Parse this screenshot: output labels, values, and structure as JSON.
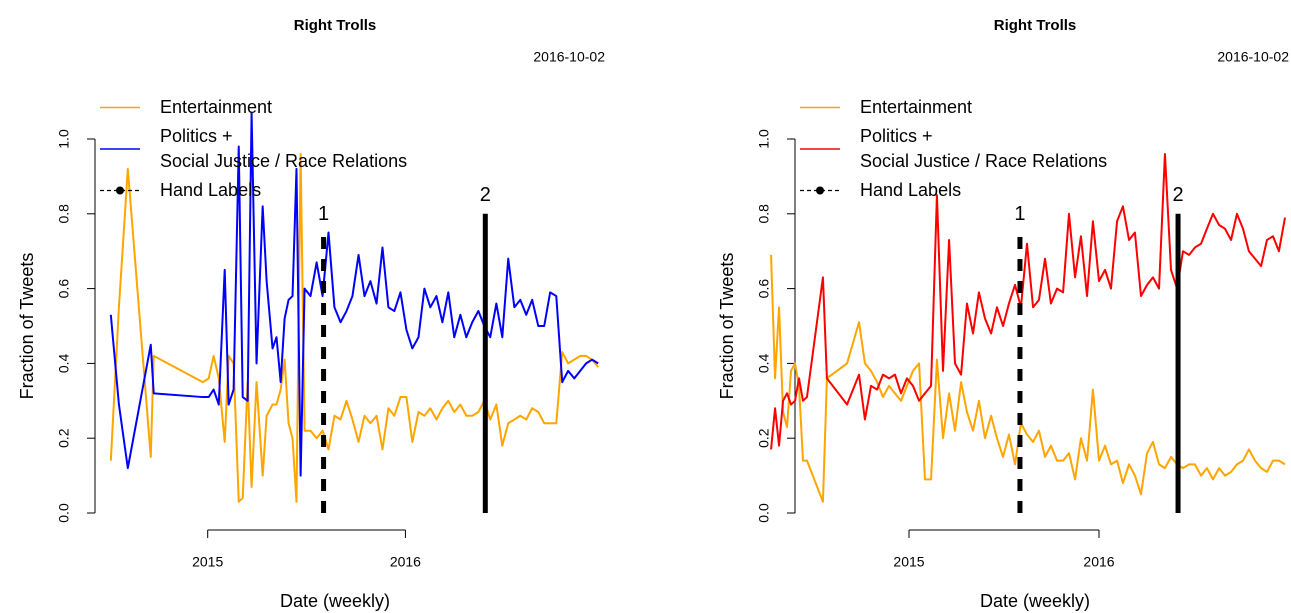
{
  "chart_data": [
    {
      "type": "line",
      "title": "Right Trolls",
      "subtitle": "2016-10-02",
      "xlabel": "Date (weekly)",
      "ylabel": "Fraction of Tweets",
      "xlim": [
        2014.43,
        2017.06
      ],
      "xticks": [
        2015,
        2016
      ],
      "ylim": [
        0,
        1
      ],
      "yticks": [
        {
          "value": 0,
          "label": "0.0"
        },
        0.2,
        0.4,
        0.6,
        0.8,
        {
          "value": 1,
          "label": "1.0"
        }
      ],
      "legend_position": "topleft",
      "annotation_legend": "Hand Labels",
      "x": [
        2014.51,
        2014.551,
        2014.596,
        2014.712,
        2014.727,
        2014.975,
        2015.005,
        2015.03,
        2015.056,
        2015.086,
        2015.106,
        2015.131,
        2015.157,
        2015.177,
        2015.202,
        2015.222,
        2015.247,
        2015.278,
        2015.298,
        2015.328,
        2015.348,
        2015.369,
        2015.389,
        2015.409,
        2015.429,
        2015.449,
        2015.47,
        2015.49,
        2015.52,
        2015.551,
        2015.581,
        2015.611,
        2015.641,
        2015.672,
        2015.702,
        2015.732,
        2015.763,
        2015.793,
        2015.823,
        2015.854,
        2015.884,
        2015.914,
        2015.944,
        2015.975,
        2016.005,
        2016.035,
        2016.066,
        2016.096,
        2016.126,
        2016.157,
        2016.187,
        2016.217,
        2016.247,
        2016.278,
        2016.308,
        2016.338,
        2016.369,
        2016.399,
        2016.429,
        2016.46,
        2016.49,
        2016.52,
        2016.551,
        2016.581,
        2016.611,
        2016.641,
        2016.672,
        2016.702,
        2016.732,
        2016.763,
        2016.793,
        2016.823,
        2016.854,
        2016.884,
        2016.914,
        2016.944,
        2016.975
      ],
      "series": [
        {
          "name": "Entertainment",
          "color": "#FFA500",
          "values": [
            0.14,
            0.55,
            0.92,
            0.15,
            0.42,
            0.35,
            0.36,
            0.42,
            0.36,
            0.19,
            0.42,
            0.4,
            0.03,
            0.04,
            0.35,
            0.07,
            0.35,
            0.1,
            0.26,
            0.29,
            0.29,
            0.33,
            0.41,
            0.24,
            0.2,
            0.03,
            0.96,
            0.22,
            0.22,
            0.2,
            0.22,
            0.17,
            0.26,
            0.25,
            0.3,
            0.25,
            0.19,
            0.26,
            0.24,
            0.26,
            0.17,
            0.28,
            0.26,
            0.31,
            0.31,
            0.19,
            0.27,
            0.26,
            0.28,
            0.25,
            0.28,
            0.3,
            0.27,
            0.29,
            0.26,
            0.26,
            0.27,
            0.3,
            0.25,
            0.29,
            0.18,
            0.24,
            0.25,
            0.26,
            0.25,
            0.28,
            0.27,
            0.24,
            0.24,
            0.24,
            0.43,
            0.4,
            0.41,
            0.42,
            0.42,
            0.41,
            0.39
          ]
        },
        {
          "name": "Politics +\nSocial Justice / Race Relations",
          "color": "#0000FF",
          "values": [
            0.53,
            0.29,
            0.12,
            0.45,
            0.32,
            0.31,
            0.31,
            0.33,
            0.29,
            0.65,
            0.29,
            0.33,
            0.98,
            0.31,
            0.3,
            1.07,
            0.4,
            0.82,
            0.62,
            0.44,
            0.47,
            0.35,
            0.52,
            0.57,
            0.58,
            0.92,
            0.1,
            0.6,
            0.58,
            0.67,
            0.58,
            0.75,
            0.55,
            0.51,
            0.54,
            0.58,
            0.69,
            0.58,
            0.62,
            0.56,
            0.71,
            0.55,
            0.54,
            0.59,
            0.49,
            0.44,
            0.47,
            0.6,
            0.55,
            0.58,
            0.51,
            0.59,
            0.47,
            0.53,
            0.47,
            0.51,
            0.54,
            0.5,
            0.47,
            0.56,
            0.47,
            0.68,
            0.55,
            0.57,
            0.53,
            0.57,
            0.5,
            0.5,
            0.59,
            0.58,
            0.35,
            0.38,
            0.36,
            0.38,
            0.4,
            0.41,
            0.4
          ]
        }
      ],
      "annotations": [
        {
          "label": "1",
          "x": 2015.586,
          "y": 0.75,
          "style": "dashed"
        },
        {
          "label": "2",
          "x": 2016.404,
          "y": 0.8,
          "style": "solid"
        }
      ]
    },
    {
      "type": "line",
      "title": "Right Trolls",
      "subtitle": "2016-10-02",
      "xlabel": "Date (weekly)",
      "ylabel": "Fraction of Tweets",
      "xlim": [
        2014.4,
        2017.0
      ],
      "xticks": [
        2015,
        2016
      ],
      "ylim": [
        0,
        1
      ],
      "yticks": [
        {
          "value": 0,
          "label": "0.0"
        },
        0.2,
        0.4,
        0.6,
        0.8,
        {
          "value": 1,
          "label": "1.0"
        }
      ],
      "legend_position": "topleft",
      "annotation_legend": "Hand Labels",
      "x": [
        2014.274,
        2014.295,
        2014.316,
        2014.337,
        2014.358,
        2014.379,
        2014.4,
        2014.421,
        2014.442,
        2014.463,
        2014.547,
        2014.568,
        2014.674,
        2014.737,
        2014.768,
        2014.8,
        2014.832,
        2014.863,
        2014.895,
        2014.926,
        2014.958,
        2014.989,
        2015.021,
        2015.053,
        2015.084,
        2015.116,
        2015.147,
        2015.179,
        2015.211,
        2015.242,
        2015.274,
        2015.305,
        2015.337,
        2015.368,
        2015.4,
        2015.432,
        2015.463,
        2015.495,
        2015.526,
        2015.558,
        2015.589,
        2015.621,
        2015.653,
        2015.684,
        2015.716,
        2015.747,
        2015.779,
        2015.811,
        2015.842,
        2015.874,
        2015.905,
        2015.937,
        2015.968,
        2016.0,
        2016.032,
        2016.063,
        2016.095,
        2016.126,
        2016.158,
        2016.189,
        2016.221,
        2016.253,
        2016.284,
        2016.316,
        2016.347,
        2016.379,
        2016.411,
        2016.442,
        2016.474,
        2016.505,
        2016.537,
        2016.568,
        2016.6,
        2016.632,
        2016.663,
        2016.695,
        2016.726,
        2016.758,
        2016.789,
        2016.821,
        2016.853,
        2016.884,
        2016.916,
        2016.947,
        2016.979
      ],
      "series": [
        {
          "name": "Entertainment",
          "color": "#FFA500",
          "values": [
            0.69,
            0.36,
            0.55,
            0.27,
            0.23,
            0.38,
            0.4,
            0.34,
            0.14,
            0.14,
            0.03,
            0.36,
            0.4,
            0.51,
            0.4,
            0.38,
            0.35,
            0.31,
            0.34,
            0.32,
            0.3,
            0.34,
            0.38,
            0.4,
            0.09,
            0.09,
            0.41,
            0.2,
            0.32,
            0.22,
            0.35,
            0.27,
            0.22,
            0.3,
            0.2,
            0.26,
            0.2,
            0.15,
            0.21,
            0.13,
            0.24,
            0.21,
            0.19,
            0.22,
            0.15,
            0.18,
            0.14,
            0.14,
            0.16,
            0.09,
            0.2,
            0.14,
            0.33,
            0.14,
            0.18,
            0.13,
            0.14,
            0.08,
            0.13,
            0.1,
            0.05,
            0.16,
            0.19,
            0.13,
            0.12,
            0.15,
            0.13,
            0.12,
            0.13,
            0.13,
            0.1,
            0.12,
            0.09,
            0.12,
            0.1,
            0.11,
            0.13,
            0.14,
            0.17,
            0.14,
            0.12,
            0.11,
            0.14,
            0.14,
            0.13
          ]
        },
        {
          "name": "Politics +\nSocial Justice / Race Relations",
          "color": "#FF0000",
          "values": [
            0.17,
            0.28,
            0.18,
            0.3,
            0.32,
            0.29,
            0.3,
            0.36,
            0.3,
            0.31,
            0.63,
            0.36,
            0.29,
            0.37,
            0.25,
            0.34,
            0.33,
            0.37,
            0.36,
            0.37,
            0.32,
            0.36,
            0.34,
            0.3,
            0.32,
            0.34,
            0.85,
            0.38,
            0.73,
            0.4,
            0.37,
            0.56,
            0.48,
            0.59,
            0.52,
            0.48,
            0.55,
            0.5,
            0.56,
            0.61,
            0.55,
            0.72,
            0.55,
            0.57,
            0.68,
            0.56,
            0.6,
            0.59,
            0.8,
            0.63,
            0.74,
            0.58,
            0.78,
            0.62,
            0.65,
            0.6,
            0.78,
            0.82,
            0.73,
            0.75,
            0.58,
            0.61,
            0.63,
            0.6,
            0.96,
            0.65,
            0.6,
            0.7,
            0.69,
            0.71,
            0.72,
            0.76,
            0.8,
            0.77,
            0.76,
            0.73,
            0.8,
            0.76,
            0.7,
            0.68,
            0.66,
            0.73,
            0.74,
            0.7,
            0.79
          ]
        }
      ],
      "annotations": [
        {
          "label": "1",
          "x": 2015.584,
          "y": 0.75,
          "style": "dashed"
        },
        {
          "label": "2",
          "x": 2016.416,
          "y": 0.8,
          "style": "solid"
        }
      ]
    }
  ]
}
